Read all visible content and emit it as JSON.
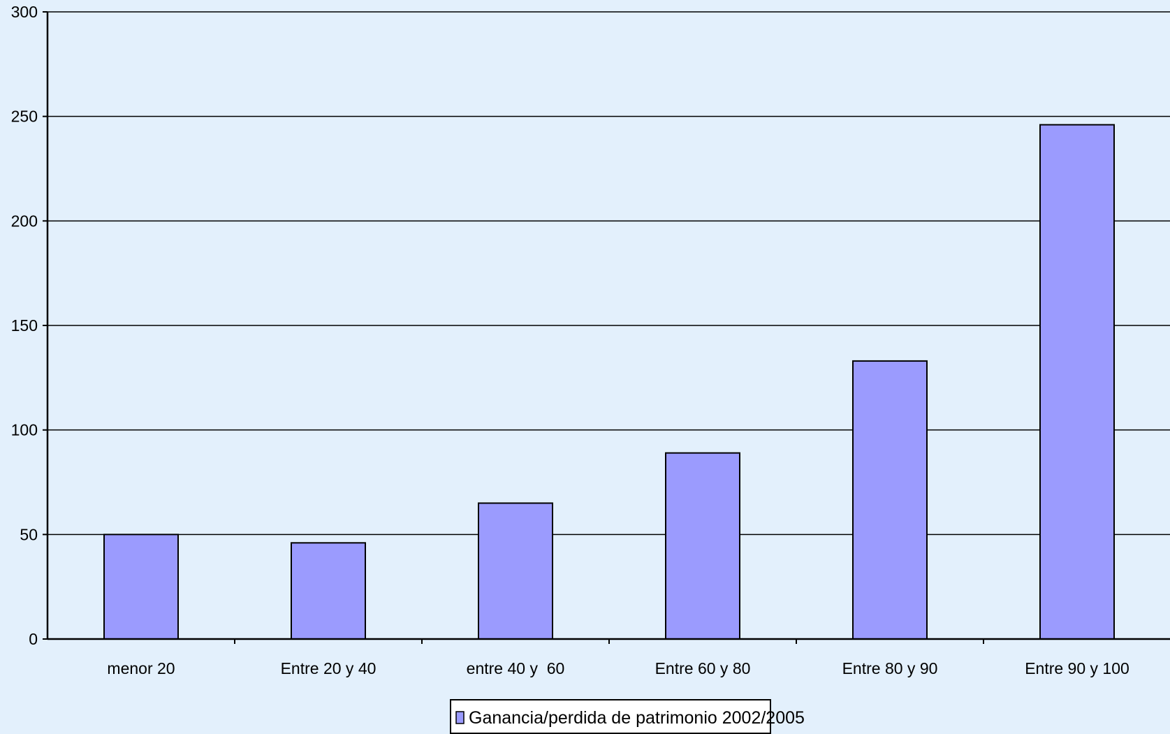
{
  "chart_data": {
    "type": "bar",
    "categories": [
      "menor 20",
      "Entre 20 y 40",
      "entre 40 y  60",
      "Entre 60 y 80",
      "Entre 80 y 90",
      "Entre 90 y 100"
    ],
    "series": [
      {
        "name": "Ganancia/perdida de patrimonio 2002/2005",
        "values": [
          50,
          46,
          65,
          89,
          133,
          246
        ]
      }
    ],
    "y_ticks": [
      "0",
      "50",
      "100",
      "150",
      "200",
      "250",
      "300"
    ],
    "ylim": [
      0,
      300
    ],
    "grid": true,
    "legend_position": "bottom",
    "title": "",
    "xlabel": "",
    "ylabel": "",
    "colors": {
      "background": "#e3f0fc",
      "bar_fill": "#9b9bfe",
      "bar_stroke": "#000000",
      "gridline": "#000000",
      "axis": "#000000"
    }
  }
}
